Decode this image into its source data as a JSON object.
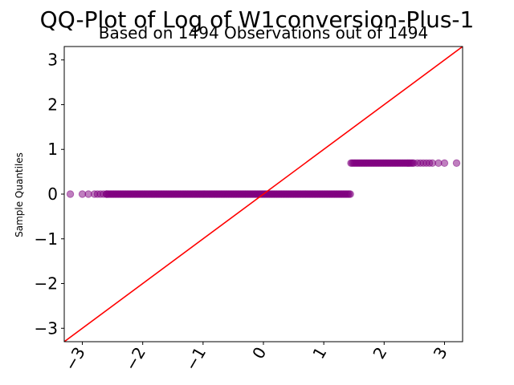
{
  "chart_data": {
    "type": "scatter",
    "title": "QQ-Plot of Log of W1conversion-Plus-1",
    "subtitle": "Based on 1494 Observations out of 1494",
    "xlabel": "",
    "ylabel": "Sample Quantiles",
    "xlim": [
      -3.3,
      3.3
    ],
    "ylim": [
      -3.3,
      3.3
    ],
    "xticks": [
      -3,
      -2,
      -1,
      0,
      1,
      2,
      3
    ],
    "yticks": [
      -3,
      -2,
      -1,
      0,
      1,
      2,
      3
    ],
    "xtick_labels": [
      "−3",
      "−2",
      "−1",
      "0",
      "1",
      "2",
      "3"
    ],
    "ytick_labels": [
      "−3",
      "−2",
      "−1",
      "0",
      "1",
      "2",
      "3"
    ],
    "grid": false,
    "series": [
      {
        "kind": "points",
        "color": "#800080",
        "segments": [
          {
            "x_outliers": [
              -3.2,
              -3.0,
              -2.9,
              -2.8,
              -2.75,
              -2.7,
              -2.65,
              -2.6
            ],
            "x_dense": [
              -2.6,
              1.45
            ],
            "y": 0.0
          },
          {
            "x_dense": [
              1.45,
              2.5
            ],
            "x_outliers": [
              2.55,
              2.6,
              2.65,
              2.7,
              2.75,
              2.8,
              2.9,
              3.0,
              3.2
            ],
            "y": 0.693
          }
        ]
      },
      {
        "kind": "reference_line",
        "color": "#ff0000",
        "slope": 1,
        "intercept": 0
      }
    ]
  }
}
